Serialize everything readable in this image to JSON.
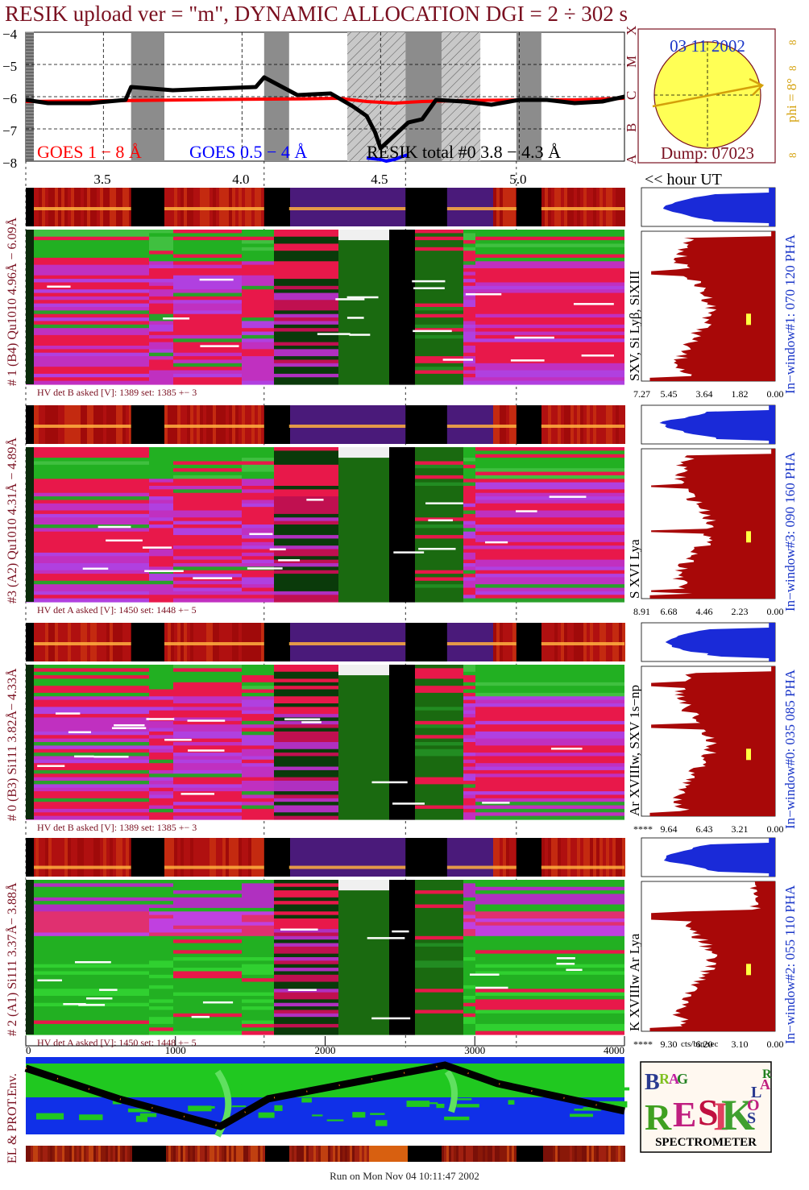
{
  "header": {
    "title": "RESIK upload ver = \"m\", DYNAMIC ALLOCATION  DGI =   2 ÷ 302 s",
    "date": "03 11 2002",
    "dump": "Dump: 07023",
    "phi_label": "phi =  8°",
    "phi_marks": [
      "8",
      "8",
      "8"
    ]
  },
  "lightcurve": {
    "y_ticks": [
      "−4",
      "−5",
      "−6",
      "−7",
      "−8"
    ],
    "goes_classes": [
      "X",
      "M",
      "C",
      "B",
      "A"
    ],
    "legend": {
      "goes18": "GOES 1 − 8 Å",
      "goes054": "GOES 0.5 − 4 Å",
      "resik_total": "RESIK total #0  3.8 − 4.3 Å"
    },
    "colors": {
      "goes18": "#ff0000",
      "goes054": "#0000ff",
      "resik": "#000000"
    }
  },
  "hour_axis": {
    "ticks": [
      "3.5",
      "4.0",
      "4.5",
      "5.0"
    ],
    "unit_label": "<< hour UT"
  },
  "channels": [
    {
      "name": "# 1 (B4) Qu1010 4.96Å − 6.09Å",
      "lines": "SXV, Si Lyβ, SiXIII",
      "window": "In−window#1:  070 120 PHA",
      "hv": "HV det B asked [V]:  1389 set:  1385 +−    3",
      "spec_ticks": [
        "7.27",
        "5.45",
        "3.64",
        "1.82",
        "0.00"
      ],
      "theme": "red"
    },
    {
      "name": "#3 (A2) Qu1010  4.31Å − 4.89Å",
      "lines": "S XVI Lya",
      "window": "In−window#3:  090 160 PHA",
      "hv": "HV det A asked [V]:  1450 set:  1448 +−    5",
      "spec_ticks": [
        "8.91",
        "6.68",
        "4.46",
        "2.23",
        "0.00"
      ],
      "theme": "red"
    },
    {
      "name": "# 0 (B3) Si111  3.82Å− 4.33Å",
      "lines": "Ar XVIIIw,  SXV 1s−np",
      "window": "In−window#0:  035 085 PHA",
      "hv": "HV det B asked [V]:  1389 set:  1385 +−    3",
      "spec_ticks": [
        "****",
        "9.64",
        "6.43",
        "3.21",
        "0.00"
      ],
      "theme": "red"
    },
    {
      "name": "# 2 (A1) Si111  3.37Å− 3.88Å",
      "lines": "K XVIIIw  Ar Lya",
      "window": "In−window#2:  055 110 PHA",
      "hv": "HV det A asked [V]:  1450 set:  1448 +−    5",
      "spec_ticks": [
        "****",
        "9.30",
        "6.20",
        "3.10",
        "0.00"
      ],
      "theme": "green"
    }
  ],
  "bottom_axis": {
    "ticks": [
      "0",
      "1000",
      "2000",
      "3000",
      "4000"
    ],
    "spec_unit": "cts/bin/sec"
  },
  "environment": {
    "label": "EL & PROT.Env."
  },
  "logo": {
    "letters": [
      "B",
      "R",
      "A",
      "G",
      "R",
      "E",
      "S",
      "I",
      "K",
      "S",
      "O",
      "L",
      "A",
      "R"
    ],
    "caption": "SPECTROMETER"
  },
  "footer": "Run on Mon Nov 04 10:11:47 2002",
  "chart_data": {
    "type": "line",
    "x_unit": "hour UT",
    "xlim": [
      3.22,
      5.38
    ],
    "ylim": [
      -8,
      -4
    ],
    "y_scale": "log10 flux",
    "data_gaps": [
      [
        3.6,
        3.72
      ],
      [
        4.08,
        4.17
      ],
      [
        4.38,
        4.59
      ],
      [
        4.59,
        4.74
      ],
      [
        4.72,
        4.86
      ],
      [
        4.99,
        5.08
      ]
    ],
    "shaded_intervals": [
      [
        4.38,
        4.59
      ],
      [
        4.72,
        4.86
      ]
    ],
    "series": [
      {
        "name": "GOES 1 − 8 Å",
        "x": [
          3.22,
          3.4,
          3.6,
          3.8,
          4.0,
          4.2,
          4.35,
          4.45,
          4.55,
          4.65,
          4.8,
          5.0,
          5.2,
          5.38
        ],
        "y": [
          -6.15,
          -6.13,
          -6.12,
          -6.1,
          -6.08,
          -6.07,
          -6.05,
          -6.15,
          -6.2,
          -6.15,
          -6.12,
          -6.1,
          -6.1,
          -6.05
        ]
      },
      {
        "name": "GOES 0.5 − 4 Å",
        "x": [
          4.45,
          4.5,
          4.52,
          4.55,
          4.58,
          4.6
        ],
        "y": [
          -7.9,
          -7.95,
          -8.0,
          -7.95,
          -7.85,
          -7.8
        ]
      },
      {
        "name": "RESIK total #0  3.8 − 4.3 Å",
        "x": [
          3.22,
          3.3,
          3.45,
          3.58,
          3.6,
          3.75,
          3.9,
          4.05,
          4.08,
          4.2,
          4.32,
          4.4,
          4.45,
          4.48,
          4.5,
          4.55,
          4.6,
          4.65,
          4.7,
          4.8,
          4.9,
          5.0,
          5.1,
          5.2,
          5.3,
          5.38
        ],
        "y": [
          -6.1,
          -6.2,
          -6.2,
          -6.1,
          -5.7,
          -5.8,
          -5.75,
          -5.7,
          -5.4,
          -5.95,
          -5.9,
          -6.3,
          -6.6,
          -7.1,
          -7.6,
          -7.2,
          -6.8,
          -6.7,
          -6.1,
          -6.15,
          -6.25,
          -6.1,
          -6.1,
          -6.2,
          -6.15,
          -6.0
        ]
      }
    ],
    "orbit_x": [
      0,
      620,
      1300,
      1620,
      2800,
      3150,
      4000
    ],
    "orbit_y": [
      0.05,
      0.55,
      1.0,
      0.55,
      0.0,
      0.3,
      0.75
    ]
  }
}
